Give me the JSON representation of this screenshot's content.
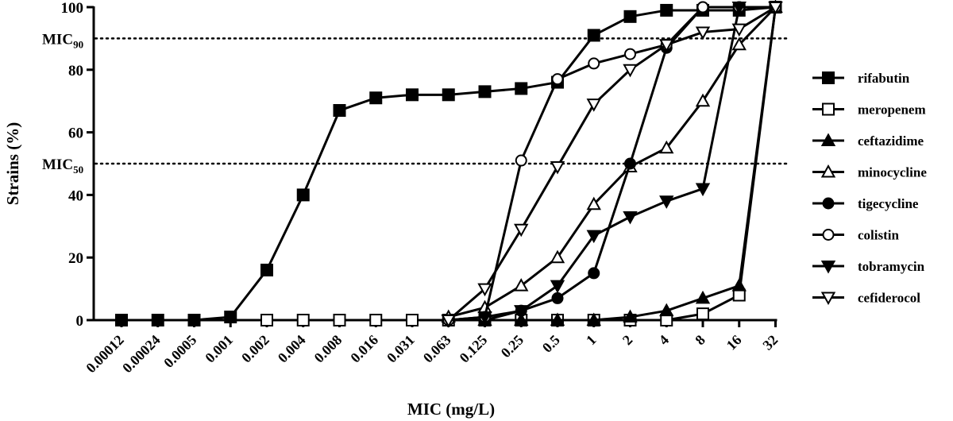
{
  "chart_data": {
    "type": "line",
    "xlabel": "MIC (mg/L)",
    "ylabel": "Strains (%)",
    "ylim": [
      0,
      100
    ],
    "yticks": [
      0,
      20,
      40,
      60,
      80,
      100
    ],
    "grid": false,
    "legend_position": "right",
    "categories": [
      "0.00012",
      "0.00024",
      "0.0005",
      "0.001",
      "0.002",
      "0.004",
      "0.008",
      "0.016",
      "0.031",
      "0.063",
      "0.125",
      "0.25",
      "0.5",
      "1",
      "2",
      "4",
      "8",
      "16",
      "32"
    ],
    "reference_lines": [
      {
        "label_main": "MIC",
        "label_sub": "90",
        "value": 90
      },
      {
        "label_main": "MIC",
        "label_sub": "50",
        "value": 50
      }
    ],
    "series": [
      {
        "name": "rifabutin",
        "marker": "square-filled",
        "points": [
          [
            "0.00012",
            0
          ],
          [
            "0.00024",
            0
          ],
          [
            "0.0005",
            0
          ],
          [
            "0.001",
            1
          ],
          [
            "0.002",
            16
          ],
          [
            "0.004",
            40
          ],
          [
            "0.008",
            67
          ],
          [
            "0.016",
            71
          ],
          [
            "0.031",
            72
          ],
          [
            "0.063",
            72
          ],
          [
            "0.125",
            73
          ],
          [
            "0.25",
            74
          ],
          [
            "0.5",
            76
          ],
          [
            "1",
            91
          ],
          [
            "2",
            97
          ],
          [
            "4",
            99
          ],
          [
            "8",
            99
          ],
          [
            "16",
            99
          ],
          [
            "32",
            100
          ]
        ]
      },
      {
        "name": "meropenem",
        "marker": "square-open",
        "points": [
          [
            "0.002",
            0
          ],
          [
            "0.004",
            0
          ],
          [
            "0.008",
            0
          ],
          [
            "0.016",
            0
          ],
          [
            "0.031",
            0
          ],
          [
            "0.063",
            0
          ],
          [
            "0.125",
            0
          ],
          [
            "0.25",
            0
          ],
          [
            "0.5",
            0
          ],
          [
            "1",
            0
          ],
          [
            "2",
            0
          ],
          [
            "4",
            0
          ],
          [
            "8",
            2
          ],
          [
            "16",
            8
          ],
          [
            "32",
            100
          ]
        ]
      },
      {
        "name": "ceftazidime",
        "marker": "triangle-up-filled",
        "points": [
          [
            "0.125",
            0
          ],
          [
            "0.25",
            0
          ],
          [
            "0.5",
            0
          ],
          [
            "1",
            0
          ],
          [
            "2",
            1
          ],
          [
            "4",
            3
          ],
          [
            "8",
            7
          ],
          [
            "16",
            11
          ],
          [
            "32",
            100
          ]
        ]
      },
      {
        "name": "minocycline",
        "marker": "triangle-up-open",
        "points": [
          [
            "0.063",
            1
          ],
          [
            "0.125",
            4
          ],
          [
            "0.25",
            11
          ],
          [
            "0.5",
            20
          ],
          [
            "1",
            37
          ],
          [
            "2",
            49
          ],
          [
            "4",
            55
          ],
          [
            "8",
            70
          ],
          [
            "16",
            88
          ],
          [
            "32",
            100
          ]
        ]
      },
      {
        "name": "tigecycline",
        "marker": "circle-filled",
        "points": [
          [
            "0.125",
            0
          ],
          [
            "0.25",
            3
          ],
          [
            "0.5",
            7
          ],
          [
            "1",
            15
          ],
          [
            "2",
            50
          ],
          [
            "4",
            87
          ],
          [
            "8",
            100
          ],
          [
            "16",
            100
          ],
          [
            "32",
            100
          ]
        ]
      },
      {
        "name": "colistin",
        "marker": "circle-open",
        "points": [
          [
            "0.063",
            0
          ],
          [
            "0.125",
            1
          ],
          [
            "0.25",
            51
          ],
          [
            "0.5",
            77
          ],
          [
            "1",
            82
          ],
          [
            "2",
            85
          ],
          [
            "4",
            88
          ],
          [
            "8",
            100
          ],
          [
            "16",
            100
          ],
          [
            "32",
            100
          ]
        ]
      },
      {
        "name": "tobramycin",
        "marker": "triangle-down-filled",
        "points": [
          [
            "0.063",
            0
          ],
          [
            "0.125",
            1
          ],
          [
            "0.25",
            3
          ],
          [
            "0.5",
            11
          ],
          [
            "1",
            27
          ],
          [
            "2",
            33
          ],
          [
            "4",
            38
          ],
          [
            "8",
            42
          ],
          [
            "16",
            100
          ],
          [
            "32",
            100
          ]
        ]
      },
      {
        "name": "cefiderocol",
        "marker": "triangle-down-open",
        "points": [
          [
            "0.063",
            0
          ],
          [
            "0.125",
            10
          ],
          [
            "0.25",
            29
          ],
          [
            "0.5",
            49
          ],
          [
            "1",
            69
          ],
          [
            "2",
            80
          ],
          [
            "4",
            88
          ],
          [
            "8",
            92
          ],
          [
            "16",
            93
          ],
          [
            "32",
            100
          ]
        ]
      }
    ]
  }
}
